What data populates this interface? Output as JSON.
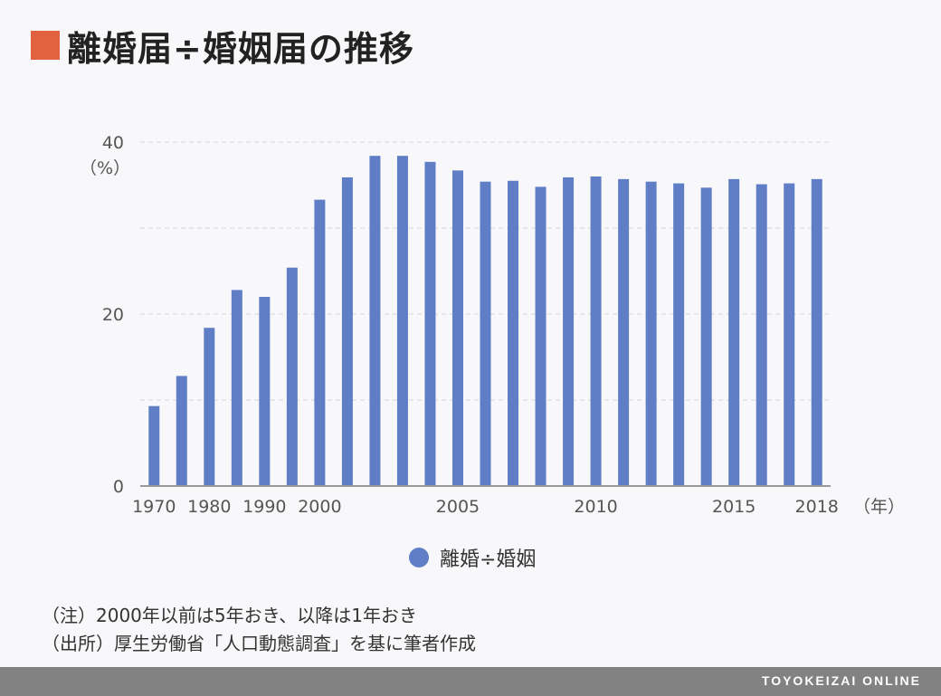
{
  "title": "離婚届÷婚姻届の推移",
  "colors": {
    "accent": "#e2623f",
    "bar": "#5f7ec6",
    "grid": "#d6d6d6",
    "axis": "#9a9a9a",
    "footer": "#828282"
  },
  "notes": [
    "（注）2000年以前は5年おき、以降は1年おき",
    "（出所）厚生労働省「人口動態調査」を基に筆者作成"
  ],
  "brand": "TOYOKEIZAI ONLINE",
  "chart_data": {
    "type": "bar",
    "title": "離婚届÷婚姻届の推移",
    "ylabel": "（%）",
    "xlabel": "（年）",
    "ylim": [
      0,
      40
    ],
    "y_ticks": [
      0,
      20,
      40
    ],
    "grid": true,
    "legend": {
      "position": "bottom-center"
    },
    "categories": [
      "1970",
      "1975",
      "1980",
      "1985",
      "1990",
      "1995",
      "2000",
      "2001",
      "2002",
      "2003",
      "2004",
      "2005",
      "2006",
      "2007",
      "2008",
      "2009",
      "2010",
      "2011",
      "2012",
      "2013",
      "2014",
      "2015",
      "2016",
      "2017",
      "2018"
    ],
    "x_tick_labels": [
      "1970",
      "1980",
      "1990",
      "2000",
      "2005",
      "2010",
      "2015",
      "2018"
    ],
    "series": [
      {
        "name": "離婚÷婚姻",
        "values": [
          9.3,
          12.8,
          18.4,
          22.8,
          22.0,
          25.4,
          33.3,
          35.9,
          38.4,
          38.4,
          37.7,
          36.7,
          35.4,
          35.5,
          34.8,
          35.9,
          36.0,
          35.7,
          35.4,
          35.2,
          34.7,
          35.7,
          35.1,
          35.2,
          35.7
        ]
      }
    ]
  }
}
